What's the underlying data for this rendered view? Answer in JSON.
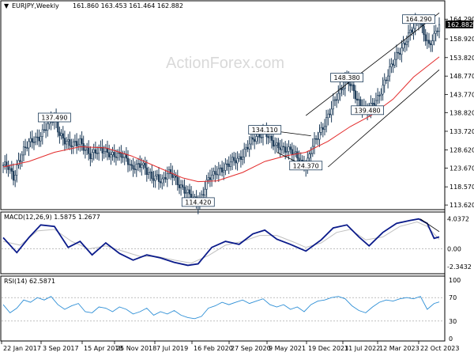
{
  "chart_data": {
    "type": "candlestick",
    "symbol_header": "EURJPY,Weekly",
    "ohlc_header": "161.860 163.453 161.464 162.882",
    "watermark": "ActionForex.com",
    "last_price": "162.882",
    "price_axis_ticks": [
      "164.290",
      "158.920",
      "153.820",
      "148.770",
      "143.770",
      "138.820",
      "133.720",
      "128.620",
      "123.670",
      "118.570",
      "113.620"
    ],
    "x_ticks": [
      "22 Jan 2017",
      "3 Sep 2017",
      "15 Apr 2018",
      "25 Nov 2018",
      "7 Jul 2019",
      "16 Feb 2020",
      "27 Sep 2020",
      "9 May 2021",
      "19 Dec 2021",
      "31 Jul 2022",
      "12 Mar 2023",
      "22 Oct 2023"
    ],
    "ylim": [
      113.0,
      166.5
    ],
    "price_path": [
      [
        0,
        124.5
      ],
      [
        3,
        123.5
      ],
      [
        6,
        121.0
      ],
      [
        9,
        126.0
      ],
      [
        12,
        128.5
      ],
      [
        15,
        130.0
      ],
      [
        18,
        131.5
      ],
      [
        21,
        132.5
      ],
      [
        24,
        134.0
      ],
      [
        27,
        135.5
      ],
      [
        30,
        137.49
      ],
      [
        33,
        133.5
      ],
      [
        36,
        131.0
      ],
      [
        39,
        129.5
      ],
      [
        42,
        130.5
      ],
      [
        45,
        131.5
      ],
      [
        48,
        128.5
      ],
      [
        51,
        126.5
      ],
      [
        54,
        128.5
      ],
      [
        57,
        129.5
      ],
      [
        60,
        128.0
      ],
      [
        63,
        126.5
      ],
      [
        66,
        127.5
      ],
      [
        69,
        128.0
      ],
      [
        72,
        126.0
      ],
      [
        75,
        123.0
      ],
      [
        78,
        124.5
      ],
      [
        81,
        125.5
      ],
      [
        84,
        122.5
      ],
      [
        87,
        120.5
      ],
      [
        90,
        121.5
      ],
      [
        93,
        120.5
      ],
      [
        96,
        122.0
      ],
      [
        99,
        121.5
      ],
      [
        102,
        120.0
      ],
      [
        105,
        118.5
      ],
      [
        108,
        116.5
      ],
      [
        111,
        115.0
      ],
      [
        114,
        114.42
      ],
      [
        117,
        117.5
      ],
      [
        120,
        120.5
      ],
      [
        123,
        121.5
      ],
      [
        126,
        123.5
      ],
      [
        129,
        124.0
      ],
      [
        132,
        124.5
      ],
      [
        135,
        125.5
      ],
      [
        138,
        126.5
      ],
      [
        141,
        128.5
      ],
      [
        144,
        130.0
      ],
      [
        147,
        131.5
      ],
      [
        150,
        133.0
      ],
      [
        153,
        134.11
      ],
      [
        156,
        131.0
      ],
      [
        159,
        129.5
      ],
      [
        162,
        130.0
      ],
      [
        165,
        129.0
      ],
      [
        168,
        128.0
      ],
      [
        171,
        127.0
      ],
      [
        174,
        126.0
      ],
      [
        177,
        124.37
      ],
      [
        180,
        128.0
      ],
      [
        183,
        131.5
      ],
      [
        186,
        134.5
      ],
      [
        189,
        137.0
      ],
      [
        192,
        139.5
      ],
      [
        195,
        143.0
      ],
      [
        198,
        146.0
      ],
      [
        201,
        148.38
      ],
      [
        204,
        145.0
      ],
      [
        207,
        142.0
      ],
      [
        210,
        141.0
      ],
      [
        213,
        139.5
      ],
      [
        216,
        140.5
      ],
      [
        219,
        142.5
      ],
      [
        222,
        146.5
      ],
      [
        225,
        149.5
      ],
      [
        228,
        152.0
      ],
      [
        231,
        155.0
      ],
      [
        234,
        157.5
      ],
      [
        237,
        160.0
      ],
      [
        240,
        161.5
      ],
      [
        243,
        164.29
      ],
      [
        246,
        161.0
      ],
      [
        249,
        157.0
      ],
      [
        252,
        159.0
      ],
      [
        255,
        162.882
      ]
    ],
    "sma": [
      [
        0,
        124.0
      ],
      [
        15,
        125.5
      ],
      [
        30,
        128.0
      ],
      [
        45,
        129.5
      ],
      [
        60,
        129.2
      ],
      [
        75,
        127.0
      ],
      [
        90,
        124.0
      ],
      [
        105,
        121.0
      ],
      [
        114,
        120.0
      ],
      [
        125,
        120.2
      ],
      [
        140,
        122.5
      ],
      [
        153,
        125.5
      ],
      [
        165,
        127.0
      ],
      [
        177,
        128.0
      ],
      [
        190,
        131.0
      ],
      [
        203,
        135.0
      ],
      [
        215,
        138.0
      ],
      [
        228,
        142.5
      ],
      [
        240,
        148.5
      ],
      [
        255,
        154.0
      ]
    ],
    "annotations": [
      {
        "text": "137.490",
        "x": 30,
        "y": 137.49
      },
      {
        "text": "114.420",
        "x": 114,
        "y": 114.42
      },
      {
        "text": "134.110",
        "x": 153,
        "y": 134.11
      },
      {
        "text": "124.370",
        "x": 177,
        "y": 124.37
      },
      {
        "text": "148.380",
        "x": 201,
        "y": 148.38
      },
      {
        "text": "139.480",
        "x": 213,
        "y": 139.48
      },
      {
        "text": "164.290",
        "x": 243,
        "y": 164.29
      }
    ],
    "channel": {
      "upper": [
        [
          177,
          138.0
        ],
        [
          255,
          166.0
        ]
      ],
      "lower": [
        [
          190,
          124.0
        ],
        [
          255,
          150.5
        ]
      ]
    },
    "triangle": {
      "upper": [
        [
          153,
          134.11
        ],
        [
          180,
          132.5
        ]
      ],
      "lower": [
        [
          160,
          128.0
        ],
        [
          180,
          123.5
        ]
      ]
    },
    "macd": {
      "header": "MACD(12,26,9) 1.5875 1.2677",
      "ticks": [
        "4.0372",
        "0.00",
        "-2.3432"
      ],
      "ylim": [
        -3.0,
        4.5
      ],
      "main": [
        [
          0,
          1.5
        ],
        [
          8,
          -0.5
        ],
        [
          15,
          1.5
        ],
        [
          22,
          3.2
        ],
        [
          30,
          3.0
        ],
        [
          38,
          0.2
        ],
        [
          45,
          1.0
        ],
        [
          52,
          -0.8
        ],
        [
          60,
          0.8
        ],
        [
          68,
          -0.6
        ],
        [
          76,
          -1.5
        ],
        [
          84,
          -0.8
        ],
        [
          92,
          -1.2
        ],
        [
          100,
          -1.8
        ],
        [
          108,
          -2.2
        ],
        [
          114,
          -2.0
        ],
        [
          122,
          0.2
        ],
        [
          130,
          1.0
        ],
        [
          138,
          0.6
        ],
        [
          146,
          2.0
        ],
        [
          153,
          2.5
        ],
        [
          160,
          1.3
        ],
        [
          168,
          0.6
        ],
        [
          177,
          -0.3
        ],
        [
          186,
          1.2
        ],
        [
          193,
          2.8
        ],
        [
          201,
          3.2
        ],
        [
          208,
          1.6
        ],
        [
          214,
          0.4
        ],
        [
          222,
          2.2
        ],
        [
          230,
          3.4
        ],
        [
          238,
          3.8
        ],
        [
          243,
          4.0
        ],
        [
          248,
          3.4
        ],
        [
          252,
          1.4
        ],
        [
          255,
          1.59
        ]
      ],
      "signal": [
        [
          0,
          1.0
        ],
        [
          10,
          0.5
        ],
        [
          20,
          2.4
        ],
        [
          30,
          2.6
        ],
        [
          40,
          1.0
        ],
        [
          50,
          0.0
        ],
        [
          60,
          0.4
        ],
        [
          70,
          -0.3
        ],
        [
          80,
          -1.0
        ],
        [
          90,
          -1.0
        ],
        [
          100,
          -1.5
        ],
        [
          110,
          -1.9
        ],
        [
          120,
          -0.9
        ],
        [
          130,
          0.5
        ],
        [
          140,
          1.0
        ],
        [
          150,
          1.8
        ],
        [
          160,
          1.8
        ],
        [
          170,
          0.9
        ],
        [
          177,
          0.2
        ],
        [
          186,
          0.8
        ],
        [
          195,
          2.2
        ],
        [
          203,
          2.6
        ],
        [
          212,
          1.2
        ],
        [
          222,
          1.6
        ],
        [
          232,
          3.0
        ],
        [
          242,
          3.6
        ],
        [
          248,
          3.0
        ],
        [
          255,
          1.27
        ]
      ],
      "trendline": [
        [
          244,
          4.0
        ],
        [
          255,
          2.3
        ]
      ]
    },
    "rsi": {
      "header": "RSI(14) 62.5871",
      "ticks": [
        "100",
        "70",
        "30",
        "0"
      ],
      "ylim": [
        0,
        100
      ],
      "line": [
        [
          0,
          58
        ],
        [
          4,
          44
        ],
        [
          8,
          52
        ],
        [
          12,
          66
        ],
        [
          16,
          62
        ],
        [
          20,
          70
        ],
        [
          24,
          66
        ],
        [
          28,
          72
        ],
        [
          32,
          58
        ],
        [
          36,
          50
        ],
        [
          40,
          56
        ],
        [
          44,
          60
        ],
        [
          48,
          46
        ],
        [
          52,
          44
        ],
        [
          56,
          54
        ],
        [
          60,
          52
        ],
        [
          64,
          46
        ],
        [
          68,
          54
        ],
        [
          72,
          50
        ],
        [
          76,
          42
        ],
        [
          80,
          46
        ],
        [
          84,
          52
        ],
        [
          88,
          40
        ],
        [
          92,
          46
        ],
        [
          96,
          42
        ],
        [
          100,
          48
        ],
        [
          104,
          40
        ],
        [
          108,
          36
        ],
        [
          112,
          34
        ],
        [
          116,
          38
        ],
        [
          120,
          52
        ],
        [
          124,
          56
        ],
        [
          128,
          62
        ],
        [
          132,
          58
        ],
        [
          136,
          62
        ],
        [
          140,
          66
        ],
        [
          144,
          60
        ],
        [
          148,
          64
        ],
        [
          152,
          68
        ],
        [
          156,
          58
        ],
        [
          160,
          54
        ],
        [
          164,
          58
        ],
        [
          168,
          50
        ],
        [
          172,
          54
        ],
        [
          176,
          46
        ],
        [
          180,
          58
        ],
        [
          184,
          64
        ],
        [
          188,
          66
        ],
        [
          192,
          70
        ],
        [
          196,
          72
        ],
        [
          200,
          68
        ],
        [
          204,
          56
        ],
        [
          208,
          48
        ],
        [
          212,
          44
        ],
        [
          216,
          54
        ],
        [
          220,
          62
        ],
        [
          224,
          66
        ],
        [
          228,
          64
        ],
        [
          232,
          68
        ],
        [
          236,
          70
        ],
        [
          240,
          68
        ],
        [
          244,
          72
        ],
        [
          248,
          50
        ],
        [
          252,
          60
        ],
        [
          255,
          62.59
        ]
      ]
    }
  }
}
